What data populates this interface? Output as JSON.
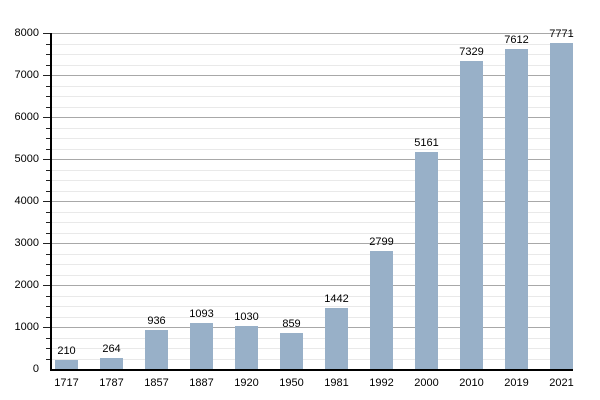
{
  "chart_data": {
    "type": "bar",
    "title": "",
    "xlabel": "",
    "ylabel": "",
    "categories": [
      "1717",
      "1787",
      "1857",
      "1887",
      "1920",
      "1950",
      "1981",
      "1992",
      "2000",
      "2010",
      "2019",
      "2021"
    ],
    "values": [
      210,
      264,
      936,
      1093,
      1030,
      859,
      1442,
      2799,
      5161,
      7329,
      7612,
      7771
    ],
    "bar_value_labels": [
      "210",
      "264",
      "936",
      "1093",
      "1030",
      "859",
      "1442",
      "2799",
      "5161",
      "7329",
      "7612",
      "7771"
    ],
    "ylim": [
      0,
      8000
    ],
    "y_major_step": 1000,
    "y_minor_step": 250,
    "y_tick_labels": [
      "0",
      "1000",
      "2000",
      "3000",
      "4000",
      "5000",
      "6000",
      "7000",
      "8000"
    ],
    "grid": "horizontal, major and minor, no vertical gridlines",
    "legend": "none",
    "colors": {
      "bar_fill": "#98b0c8",
      "major_grid": "#a8a8a8",
      "minor_grid": "#e9e9e9",
      "axis": "#000000",
      "tick": "#222222",
      "text": "#000000",
      "background": "#ffffff"
    }
  }
}
